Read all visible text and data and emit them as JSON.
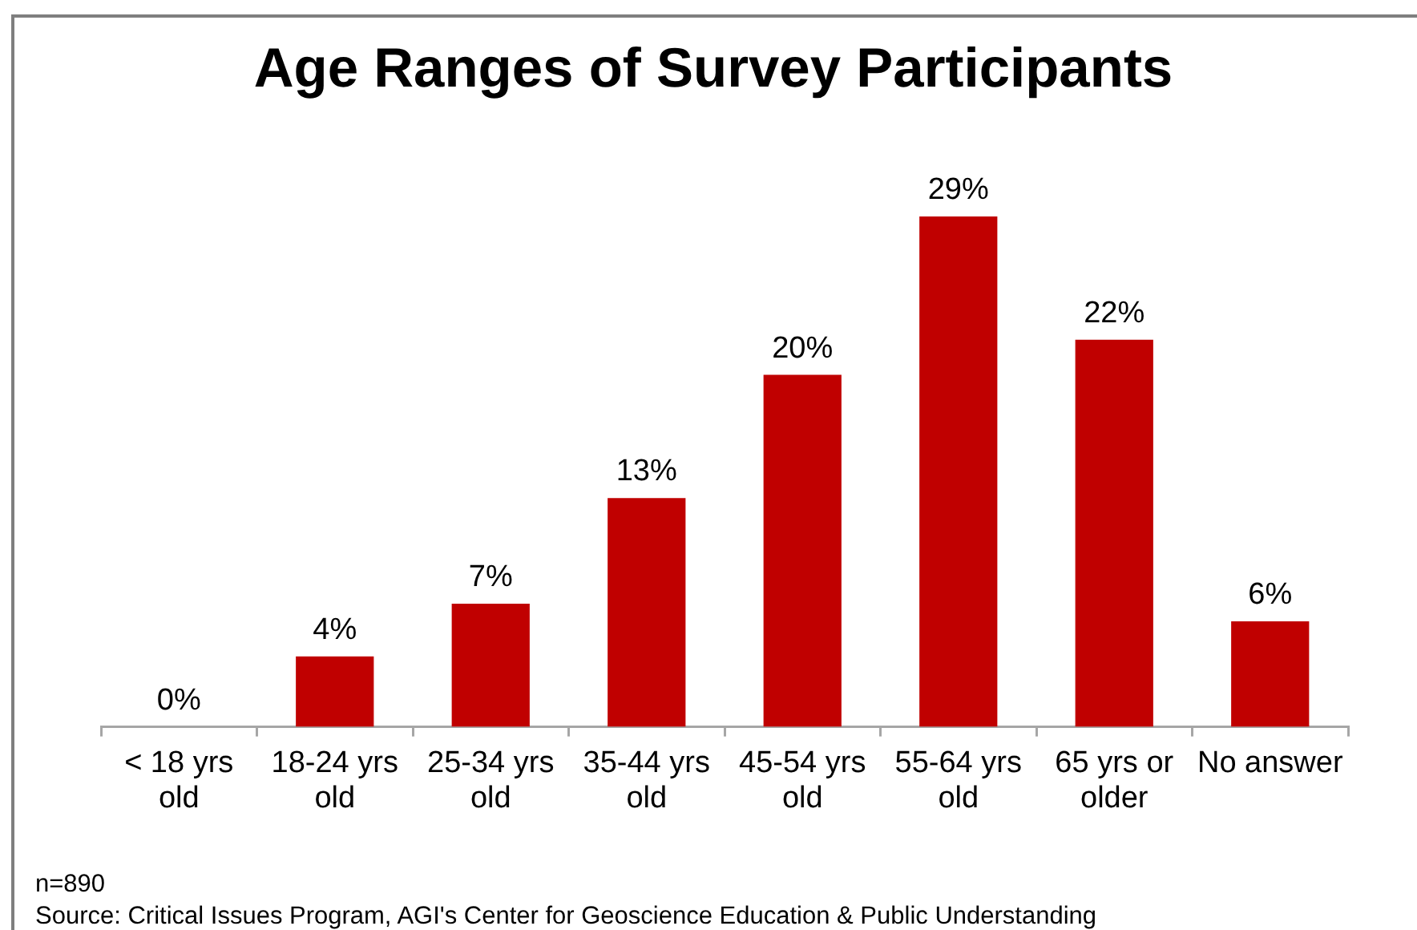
{
  "chart_data": {
    "type": "bar",
    "title": "Age Ranges of Survey Participants",
    "categories": [
      "< 18 yrs old",
      "18-24 yrs old",
      "25-34 yrs old",
      "35-44 yrs old",
      "45-54 yrs old",
      "55-64 yrs old",
      "65 yrs or older",
      "No answer"
    ],
    "values": [
      0,
      4,
      7,
      13,
      20,
      29,
      22,
      6
    ],
    "value_labels": [
      "0%",
      "4%",
      "7%",
      "13%",
      "20%",
      "29%",
      "22%",
      "6%"
    ],
    "color": "#c00000",
    "tick_labels": "x",
    "annotations": [
      "n=890",
      "Source: Critical Issues Program, AGI's Center for Geoscience Education & Public Understanding"
    ]
  }
}
